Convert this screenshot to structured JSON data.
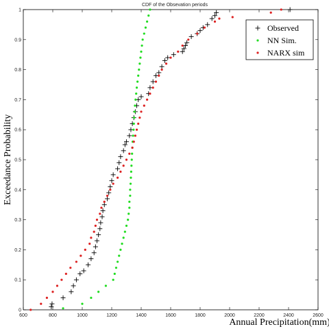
{
  "chart_data": {
    "type": "scatter",
    "title": "CDF of the Obsevation periods",
    "xlabel": "Annual Precipitation(mm)",
    "ylabel": "Exceedance Probability",
    "xlim": [
      600,
      2600
    ],
    "ylim": [
      0,
      1
    ],
    "x_ticks": [
      "600",
      "800",
      "1000",
      "1200",
      "1400",
      "1600",
      "1800",
      "2000",
      "2200",
      "2400",
      "2600"
    ],
    "y_ticks": [
      "0",
      "0.1",
      "0.2",
      "0.3",
      "0.4",
      "0.5",
      "0.6",
      "0.7",
      "0.8",
      "0.9",
      "1"
    ],
    "legend_position": "top-right",
    "series": [
      {
        "name": "Observed",
        "marker": "plus",
        "color": "#000000",
        "points": [
          [
            790,
            0.01
          ],
          [
            795,
            0.02
          ],
          [
            870,
            0.04
          ],
          [
            925,
            0.06
          ],
          [
            940,
            0.08
          ],
          [
            960,
            0.1
          ],
          [
            985,
            0.12
          ],
          [
            1010,
            0.13
          ],
          [
            1040,
            0.15
          ],
          [
            1060,
            0.17
          ],
          [
            1080,
            0.19
          ],
          [
            1090,
            0.21
          ],
          [
            1100,
            0.23
          ],
          [
            1110,
            0.25
          ],
          [
            1120,
            0.27
          ],
          [
            1125,
            0.29
          ],
          [
            1135,
            0.31
          ],
          [
            1140,
            0.33
          ],
          [
            1150,
            0.35
          ],
          [
            1170,
            0.37
          ],
          [
            1180,
            0.39
          ],
          [
            1190,
            0.41
          ],
          [
            1200,
            0.43
          ],
          [
            1210,
            0.45
          ],
          [
            1240,
            0.47
          ],
          [
            1250,
            0.49
          ],
          [
            1260,
            0.51
          ],
          [
            1280,
            0.53
          ],
          [
            1290,
            0.55
          ],
          [
            1300,
            0.56
          ],
          [
            1320,
            0.58
          ],
          [
            1330,
            0.6
          ],
          [
            1340,
            0.62
          ],
          [
            1350,
            0.64
          ],
          [
            1360,
            0.66
          ],
          [
            1370,
            0.68
          ],
          [
            1380,
            0.7
          ],
          [
            1400,
            0.71
          ],
          [
            1450,
            0.72
          ],
          [
            1460,
            0.74
          ],
          [
            1480,
            0.76
          ],
          [
            1500,
            0.78
          ],
          [
            1520,
            0.79
          ],
          [
            1540,
            0.81
          ],
          [
            1560,
            0.83
          ],
          [
            1580,
            0.84
          ],
          [
            1620,
            0.85
          ],
          [
            1680,
            0.86
          ],
          [
            1690,
            0.87
          ],
          [
            1700,
            0.88
          ],
          [
            1710,
            0.89
          ],
          [
            1740,
            0.91
          ],
          [
            1780,
            0.92
          ],
          [
            1800,
            0.93
          ],
          [
            1820,
            0.94
          ],
          [
            1850,
            0.95
          ],
          [
            1880,
            0.97
          ],
          [
            1900,
            0.98
          ],
          [
            1910,
            0.99
          ],
          [
            2410,
            1.0
          ]
        ]
      },
      {
        "name": "NN Sim.",
        "marker": "dot",
        "color": "#22dd22",
        "points": [
          [
            870,
            0.005
          ],
          [
            1000,
            0.02
          ],
          [
            1060,
            0.04
          ],
          [
            1110,
            0.06
          ],
          [
            1160,
            0.08
          ],
          [
            1210,
            0.1
          ],
          [
            1220,
            0.12
          ],
          [
            1230,
            0.14
          ],
          [
            1240,
            0.16
          ],
          [
            1250,
            0.18
          ],
          [
            1260,
            0.2
          ],
          [
            1270,
            0.22
          ],
          [
            1280,
            0.24
          ],
          [
            1290,
            0.26
          ],
          [
            1300,
            0.28
          ],
          [
            1310,
            0.3
          ],
          [
            1315,
            0.32
          ],
          [
            1320,
            0.34
          ],
          [
            1320,
            0.36
          ],
          [
            1325,
            0.38
          ],
          [
            1325,
            0.4
          ],
          [
            1328,
            0.42
          ],
          [
            1330,
            0.44
          ],
          [
            1332,
            0.46
          ],
          [
            1334,
            0.48
          ],
          [
            1336,
            0.5
          ],
          [
            1338,
            0.52
          ],
          [
            1340,
            0.54
          ],
          [
            1342,
            0.56
          ],
          [
            1345,
            0.58
          ],
          [
            1348,
            0.6
          ],
          [
            1350,
            0.62
          ],
          [
            1352,
            0.64
          ],
          [
            1355,
            0.66
          ],
          [
            1358,
            0.68
          ],
          [
            1362,
            0.7
          ],
          [
            1366,
            0.72
          ],
          [
            1370,
            0.74
          ],
          [
            1375,
            0.76
          ],
          [
            1380,
            0.78
          ],
          [
            1385,
            0.8
          ],
          [
            1390,
            0.82
          ],
          [
            1395,
            0.84
          ],
          [
            1400,
            0.86
          ],
          [
            1405,
            0.88
          ],
          [
            1410,
            0.9
          ],
          [
            1420,
            0.92
          ],
          [
            1430,
            0.94
          ],
          [
            1440,
            0.96
          ],
          [
            1450,
            0.98
          ],
          [
            1460,
            1.0
          ]
        ]
      },
      {
        "name": "NARX sim",
        "marker": "dot",
        "color": "#dd2222",
        "points": [
          [
            650,
            0.0
          ],
          [
            720,
            0.02
          ],
          [
            760,
            0.04
          ],
          [
            800,
            0.06
          ],
          [
            830,
            0.08
          ],
          [
            860,
            0.1
          ],
          [
            890,
            0.12
          ],
          [
            920,
            0.14
          ],
          [
            960,
            0.16
          ],
          [
            990,
            0.18
          ],
          [
            1020,
            0.2
          ],
          [
            1050,
            0.22
          ],
          [
            1060,
            0.24
          ],
          [
            1080,
            0.26
          ],
          [
            1090,
            0.28
          ],
          [
            1100,
            0.3
          ],
          [
            1120,
            0.32
          ],
          [
            1130,
            0.34
          ],
          [
            1150,
            0.36
          ],
          [
            1170,
            0.38
          ],
          [
            1190,
            0.4
          ],
          [
            1210,
            0.42
          ],
          [
            1240,
            0.44
          ],
          [
            1260,
            0.46
          ],
          [
            1280,
            0.48
          ],
          [
            1300,
            0.5
          ],
          [
            1320,
            0.52
          ],
          [
            1340,
            0.54
          ],
          [
            1350,
            0.56
          ],
          [
            1360,
            0.58
          ],
          [
            1370,
            0.6
          ],
          [
            1380,
            0.62
          ],
          [
            1390,
            0.64
          ],
          [
            1400,
            0.66
          ],
          [
            1420,
            0.68
          ],
          [
            1440,
            0.7
          ],
          [
            1460,
            0.72
          ],
          [
            1480,
            0.74
          ],
          [
            1500,
            0.76
          ],
          [
            1520,
            0.78
          ],
          [
            1540,
            0.8
          ],
          [
            1570,
            0.82
          ],
          [
            1600,
            0.84
          ],
          [
            1650,
            0.86
          ],
          [
            1680,
            0.88
          ],
          [
            1720,
            0.9
          ],
          [
            1780,
            0.92
          ],
          [
            1830,
            0.94
          ],
          [
            1900,
            0.96
          ],
          [
            1930,
            0.97
          ],
          [
            2020,
            0.975
          ],
          [
            2280,
            0.99
          ],
          [
            2350,
            1.0
          ]
        ]
      }
    ]
  }
}
